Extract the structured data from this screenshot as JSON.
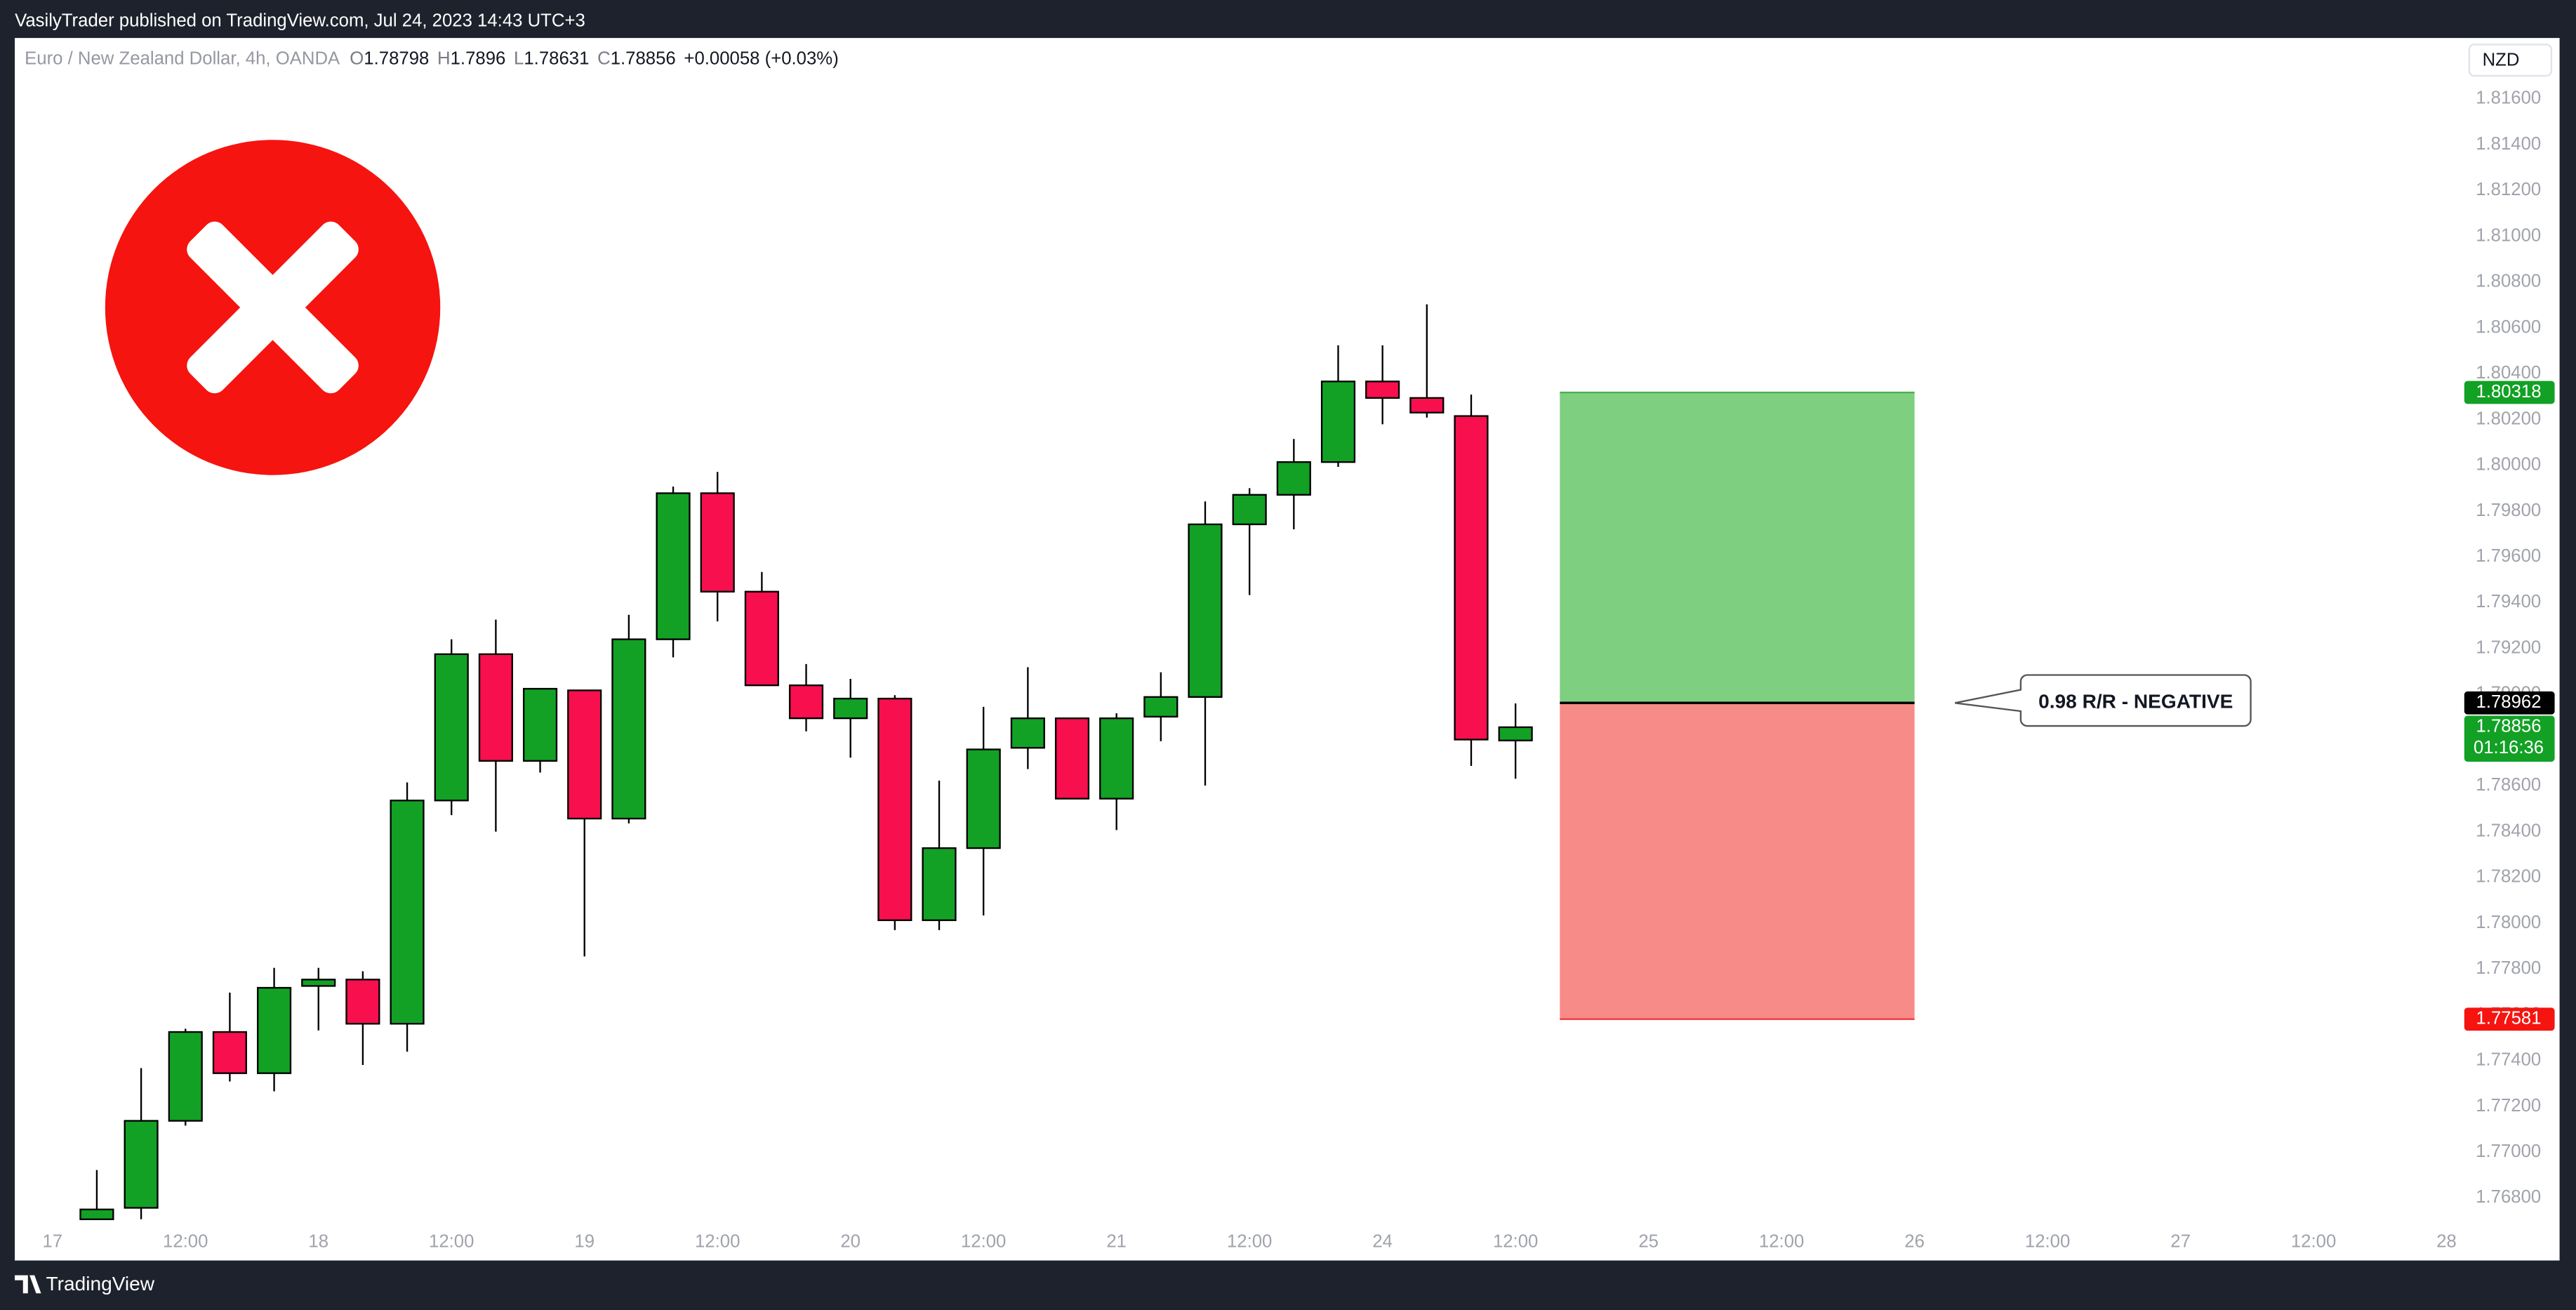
{
  "chart_data": {
    "type": "candlestick",
    "header": "VasilyTrader published on TradingView.com, Jul 24, 2023 14:43 UTC+3",
    "symbol": "Euro / New Zealand Dollar, 4h, OANDA",
    "legend_keys": [
      "O",
      "H",
      "L",
      "C"
    ],
    "change": "+0.00058 (+0.03%)",
    "currency": "NZD",
    "footer": "TradingView",
    "up_color": "#12a125",
    "down_color": "#f70f4e",
    "x": [
      1,
      2,
      3,
      4,
      5,
      6,
      7,
      8,
      9,
      10,
      11,
      12,
      13,
      14,
      15,
      16,
      17,
      18,
      19,
      20,
      21,
      22,
      23,
      24,
      25,
      26,
      27,
      28,
      29,
      30,
      31,
      32,
      33
    ],
    "open": [
      1.76707,
      1.76757,
      1.77137,
      1.77525,
      1.77345,
      1.77726,
      1.77754,
      1.77561,
      1.78536,
      1.79175,
      1.78709,
      1.79017,
      1.78457,
      1.7924,
      1.79878,
      1.79448,
      1.79039,
      1.78895,
      1.78981,
      1.78013,
      1.78328,
      1.78766,
      1.78895,
      1.78544,
      1.78902,
      1.78988,
      1.79742,
      1.79871,
      1.80014,
      1.80366,
      1.80294,
      1.80215,
      1.78798
    ],
    "high": [
      1.76922,
      1.77367,
      1.77539,
      1.77697,
      1.77805,
      1.77805,
      1.7779,
      1.78615,
      1.7924,
      1.79326,
      1.79024,
      1.79017,
      1.79347,
      1.79907,
      1.79971,
      1.79534,
      1.79132,
      1.79067,
      1.78996,
      1.78623,
      1.78945,
      1.79118,
      1.78895,
      1.78917,
      1.79096,
      1.79842,
      1.799,
      1.80115,
      1.80524,
      1.80524,
      1.80703,
      1.80309,
      1.7896
    ],
    "low": [
      1.76707,
      1.76707,
      1.77116,
      1.77309,
      1.77266,
      1.77532,
      1.77381,
      1.77439,
      1.78472,
      1.784,
      1.78658,
      1.77855,
      1.78436,
      1.79161,
      1.79318,
      1.79039,
      1.78838,
      1.78723,
      1.7797,
      1.7797,
      1.78034,
      1.78673,
      1.78544,
      1.78407,
      1.78795,
      1.78601,
      1.79433,
      1.7972,
      1.79993,
      1.80179,
      1.80208,
      1.78687,
      1.78631
    ],
    "close": [
      1.7675,
      1.77137,
      1.77525,
      1.77345,
      1.77718,
      1.77754,
      1.77561,
      1.78536,
      1.79175,
      1.78709,
      1.79024,
      1.78457,
      1.7924,
      1.79878,
      1.79448,
      1.79039,
      1.78895,
      1.78981,
      1.78013,
      1.78328,
      1.78759,
      1.78895,
      1.78544,
      1.78895,
      1.78988,
      1.79742,
      1.79871,
      1.80014,
      1.80366,
      1.80294,
      1.8023,
      1.78802,
      1.78856
    ],
    "countdown": "01:16:36",
    "position": {
      "target": 1.80318,
      "entry": 1.78962,
      "stop": 1.77581,
      "start": 34,
      "end": 42,
      "label": "0.98 R/R - NEGATIVE",
      "profit_color": "#7fcf80",
      "loss_color": "#f78b87"
    },
    "ylim": [
      1.76527,
      1.81866
    ],
    "yticks": [
      {
        "value": 1.768,
        "label": "1.76800"
      },
      {
        "value": 1.77,
        "label": "1.77000"
      },
      {
        "value": 1.772,
        "label": "1.77200"
      },
      {
        "value": 1.774,
        "label": "1.77400"
      },
      {
        "value": 1.776,
        "label": "1.77600"
      },
      {
        "value": 1.778,
        "label": "1.77800"
      },
      {
        "value": 1.78,
        "label": "1.78000"
      },
      {
        "value": 1.782,
        "label": "1.78200"
      },
      {
        "value": 1.784,
        "label": "1.78400"
      },
      {
        "value": 1.786,
        "label": "1.78600"
      },
      {
        "value": 1.788,
        "label": "1.78800"
      },
      {
        "value": 1.79,
        "label": "1.79000"
      },
      {
        "value": 1.792,
        "label": "1.79200"
      },
      {
        "value": 1.794,
        "label": "1.79400"
      },
      {
        "value": 1.796,
        "label": "1.79600"
      },
      {
        "value": 1.798,
        "label": "1.79800"
      },
      {
        "value": 1.8,
        "label": "1.80000"
      },
      {
        "value": 1.802,
        "label": "1.80200"
      },
      {
        "value": 1.804,
        "label": "1.80400"
      },
      {
        "value": 1.806,
        "label": "1.80600"
      },
      {
        "value": 1.808,
        "label": "1.80800"
      },
      {
        "value": 1.81,
        "label": "1.81000"
      },
      {
        "value": 1.812,
        "label": "1.81200"
      },
      {
        "value": 1.814,
        "label": "1.81400"
      },
      {
        "value": 1.816,
        "label": "1.81600"
      }
    ],
    "xlim": [
      -0.85,
      54.4
    ],
    "xticks": [
      {
        "value": 0,
        "label": "17"
      },
      {
        "value": 3,
        "label": "12:00"
      },
      {
        "value": 6,
        "label": "18"
      },
      {
        "value": 9,
        "label": "12:00"
      },
      {
        "value": 12,
        "label": "19"
      },
      {
        "value": 15,
        "label": "12:00"
      },
      {
        "value": 18,
        "label": "20"
      },
      {
        "value": 21,
        "label": "12:00"
      },
      {
        "value": 24,
        "label": "21"
      },
      {
        "value": 27,
        "label": "12:00"
      },
      {
        "value": 30,
        "label": "24"
      },
      {
        "value": 33,
        "label": "12:00"
      },
      {
        "value": 36,
        "label": "25"
      },
      {
        "value": 39,
        "label": "12:00"
      },
      {
        "value": 42,
        "label": "26"
      },
      {
        "value": 45,
        "label": "12:00"
      },
      {
        "value": 48,
        "label": "27"
      },
      {
        "value": 51,
        "label": "12:00"
      },
      {
        "value": 54,
        "label": "28"
      }
    ]
  }
}
